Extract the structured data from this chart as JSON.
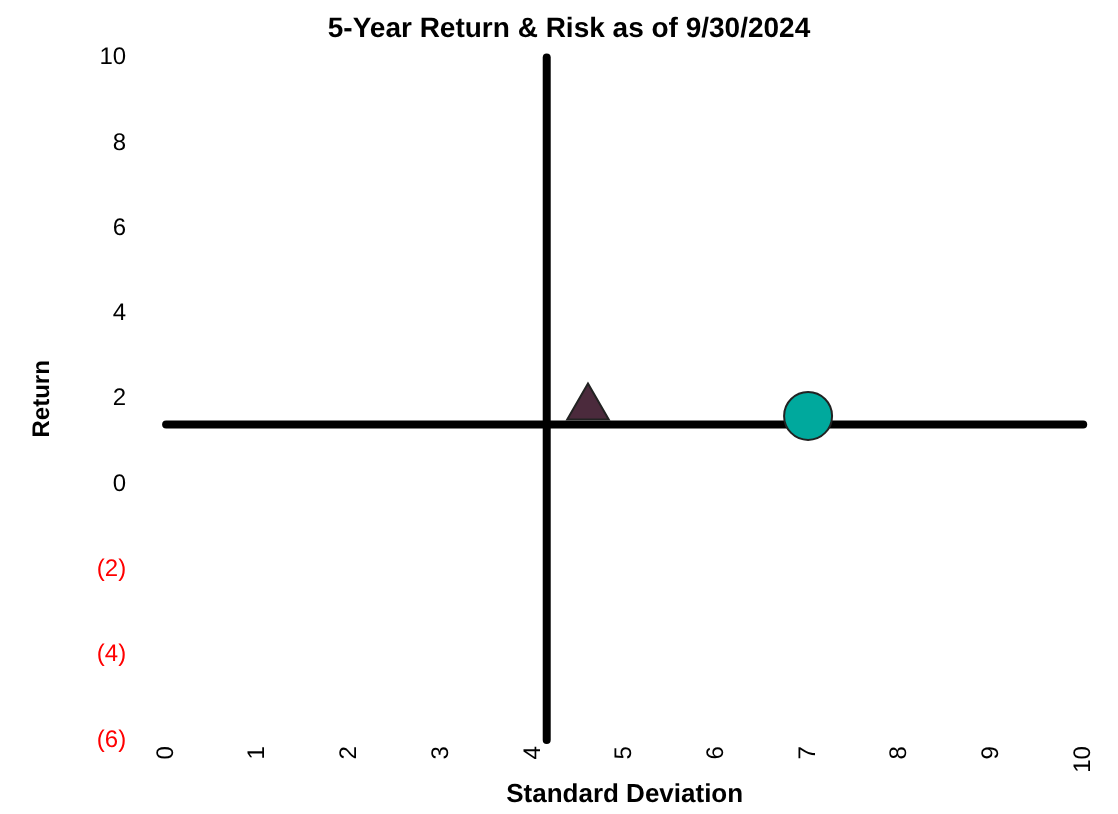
{
  "chart_data": {
    "type": "scatter",
    "title": "5-Year Return & Risk as of 9/30/2024",
    "xlabel": "Standard Deviation",
    "ylabel": "Return",
    "series": [
      {
        "color": "#4b2a3c",
        "x": [
          4.6
        ],
        "values": [
          1.8
        ],
        "marker": "triangle"
      },
      {
        "color": "#00a99d",
        "x": [
          7.0
        ],
        "values": [
          1.6
        ],
        "marker": "circle"
      }
    ],
    "xlim": [
      0,
      10
    ],
    "xticks": [
      0,
      1,
      2,
      3,
      4,
      5,
      6,
      7,
      8,
      9,
      10
    ],
    "ylim": [
      -6,
      10
    ],
    "yticks": [
      {
        "value": -6,
        "label": "(6)"
      },
      {
        "value": -4,
        "label": "(4)"
      },
      {
        "value": -2,
        "label": "(2)"
      },
      0,
      2,
      4,
      6,
      8,
      10
    ],
    "ref_lines": [
      {
        "axis": "y",
        "value": 1.4,
        "color": "#000000"
      },
      {
        "axis": "x",
        "value": 4.15,
        "color": "#000000"
      }
    ],
    "grid": false,
    "legend": false
  }
}
